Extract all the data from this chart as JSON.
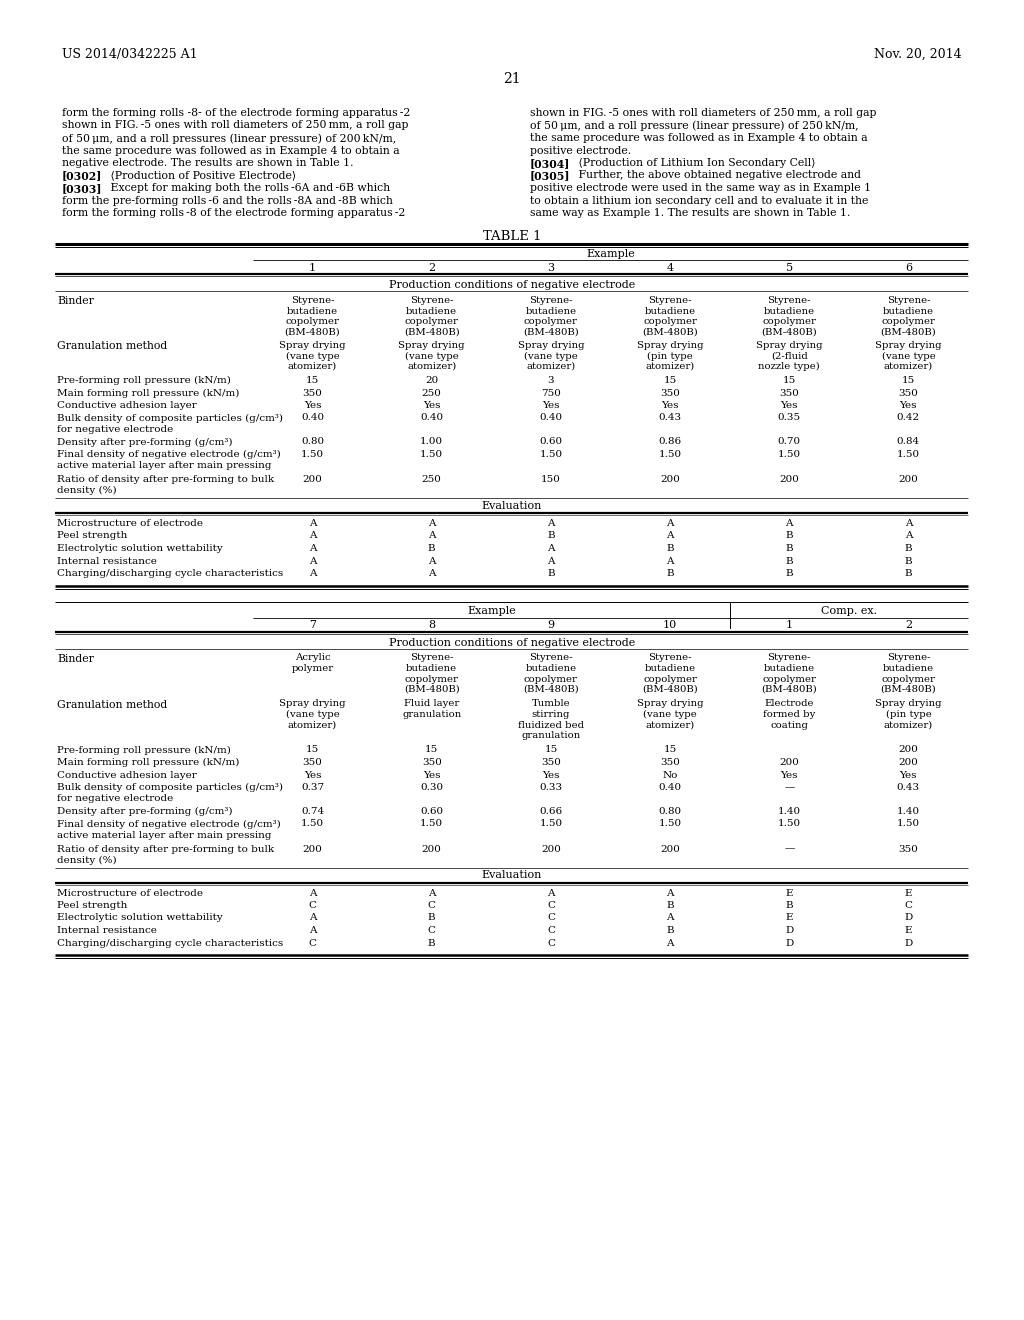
{
  "page_number": "21",
  "patent_left": "US 2014/0342225 A1",
  "patent_right": "Nov. 20, 2014",
  "background": "#ffffff"
}
